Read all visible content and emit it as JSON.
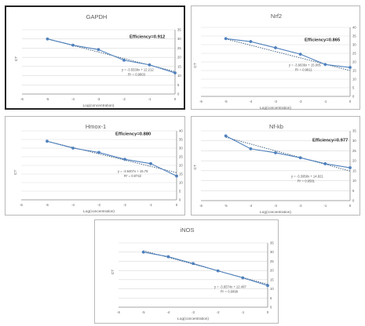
{
  "colors": {
    "series": "#4f81bd",
    "trend": "#2f4f73",
    "grid": "#d9d9d9",
    "axis": "#8c8c8c",
    "text": "#595959"
  },
  "chart_data": [
    {
      "type": "line",
      "title": "GAPDH",
      "xlabel": "Log(concentration)",
      "ylabel": "CT",
      "xlim": [
        -6,
        0
      ],
      "ylim": [
        0,
        35
      ],
      "xticks": [
        -6,
        -5,
        -4,
        -3,
        -2,
        -1,
        0
      ],
      "yticks": [
        0,
        5,
        10,
        15,
        20,
        25,
        30,
        35
      ],
      "x": [
        -5,
        -4,
        -3,
        -2,
        -1,
        0
      ],
      "y": [
        30.0,
        26.6,
        24.2,
        18.4,
        15.9,
        11.5
      ],
      "trendline": {
        "slope": -3.5539,
        "intercept": 12.212
      },
      "efficiency": "Efficiency=0.912",
      "equation": "y = -3.5539x + 12.212",
      "r2": "R² = 0.9803"
    },
    {
      "type": "line",
      "title": "Nrf2",
      "xlabel": "Log(concentration)",
      "ylabel": "CT",
      "xlim": [
        -6,
        0
      ],
      "ylim": [
        0,
        40
      ],
      "xticks": [
        -6,
        -5,
        -4,
        -3,
        -2,
        -1,
        0
      ],
      "yticks": [
        0,
        5,
        10,
        15,
        20,
        25,
        30,
        35,
        40
      ],
      "x": [
        -5,
        -4,
        -3,
        -2,
        -1,
        0
      ],
      "y": [
        33.5,
        31.8,
        28.2,
        24.5,
        18.5,
        16.8
      ],
      "trendline": {
        "slope": -3.6636,
        "intercept": 15.005
      },
      "efficiency": "Efficiency=0.865",
      "equation": "y = -3.6636x + 15.005",
      "r2": "R² = 0.9811"
    },
    {
      "type": "line",
      "title": "Hmox-1",
      "xlabel": "Log(concentration)",
      "ylabel": "CT",
      "xlim": [
        -6,
        0
      ],
      "ylim": [
        0,
        40
      ],
      "xticks": [
        -6,
        -5,
        -4,
        -3,
        -2,
        -1,
        0
      ],
      "yticks": [
        0,
        5,
        10,
        15,
        20,
        25,
        30,
        35,
        40
      ],
      "x": [
        -5,
        -4,
        -3,
        -2,
        -1,
        0
      ],
      "y": [
        34.0,
        30.0,
        27.5,
        23.5,
        21.0,
        13.8
      ],
      "trendline": {
        "slope": -3.6407,
        "intercept": 15.76
      },
      "efficiency": "Efficiency=0.880",
      "equation": "y = -3.6407x + 15.76",
      "r2": "R² = 0.9742"
    },
    {
      "type": "line",
      "title": "Nf-kb",
      "xlabel": "Log(concentration)",
      "ylabel": "CT",
      "xlim": [
        -6,
        0
      ],
      "ylim": [
        0,
        35
      ],
      "xticks": [
        -6,
        -5,
        -4,
        -3,
        -2,
        -1,
        0
      ],
      "yticks": [
        0,
        5,
        10,
        15,
        20,
        25,
        30,
        35
      ],
      "x": [
        -5,
        -4,
        -3,
        -2,
        -1,
        0
      ],
      "y": [
        32.5,
        26.0,
        24.0,
        21.5,
        18.5,
        16.5
      ],
      "trendline": {
        "slope": -3.3958,
        "intercept": 14.821
      },
      "efficiency": "Efficiency=0.977",
      "equation": "y = -3.3958x + 14.821",
      "r2": "R² = 0.9581"
    },
    {
      "type": "line",
      "title": "iNOS",
      "xlabel": "Log(concentration)",
      "ylabel": "CT",
      "xlim": [
        -6,
        0
      ],
      "ylim": [
        0,
        35
      ],
      "xticks": [
        -6,
        -5,
        -4,
        -3,
        -2,
        -1,
        0
      ],
      "yticks": [
        0,
        5,
        10,
        15,
        20,
        25,
        30,
        35
      ],
      "x": [
        -5,
        -4,
        -3,
        -2,
        -1,
        0
      ],
      "y": [
        30.0,
        27.5,
        23.8,
        19.8,
        16.0,
        11.8
      ],
      "trendline": {
        "slope": -3.6574,
        "intercept": 12.497
      },
      "efficiency": "",
      "equation": "y = -3.6574x + 12.497",
      "r2": "R² = 0.9998"
    }
  ]
}
